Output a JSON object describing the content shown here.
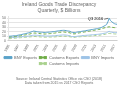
{
  "chart_data": {
    "type": "line",
    "title": "Ireland Goods Trade Discrepancy",
    "subtitle": "Quarterly, $ Billions",
    "annotation": "Q3 2016",
    "source": "Source: Ireland Central Statistics Office via CSO (2018)",
    "note": "Data taken from 2015 vs 2017 CSO Reports",
    "x": [
      1995.0,
      1995.2711,
      1995.5422,
      1995.8133,
      1996.0843,
      1996.3554,
      1996.6265,
      1996.8976,
      1997.1687,
      1997.4398,
      1997.7108,
      1997.9819,
      1998.253,
      1998.5241,
      1998.7952,
      1999.0663,
      1999.3373,
      1999.6084,
      1999.8795,
      2000.1506,
      2000.4217,
      2000.6928,
      2000.9639,
      2001.2349,
      2001.506,
      2001.7771,
      2002.0482,
      2002.3193,
      2002.5904,
      2002.8614,
      2003.1325,
      2003.4036,
      2003.6747,
      2003.9458,
      2004.2169,
      2004.488,
      2004.759,
      2005.0301,
      2005.3012,
      2005.5723,
      2005.8434,
      2006.1145,
      2006.3855,
      2006.6566,
      2006.9277,
      2007.1988,
      2007.4699,
      2007.741,
      2008.012,
      2008.2831,
      2008.5542,
      2008.8253,
      2009.0964,
      2009.3675,
      2009.6386,
      2009.9096,
      2010.1807,
      2010.4518,
      2010.7229,
      2010.994,
      2011.2651,
      2011.5361,
      2011.8072,
      2012.0783,
      2012.3494,
      2012.6205,
      2012.8916,
      2013.1627,
      2013.4337,
      2013.7048,
      2013.9759,
      2014.247,
      2014.5181,
      2014.7892,
      2015.0602,
      2015.3313,
      2015.6024,
      2015.8735,
      2016.1446,
      2016.4157,
      2016.6867,
      2016.9578,
      2017.2289,
      2017.5
    ],
    "series": [
      {
        "name": "BNY Exports",
        "color": "#5ba3c9",
        "line_style": "solid",
        "values": [
          10.0,
          10.2,
          10.5,
          10.8,
          11.0,
          11.3,
          11.8,
          12.2,
          13.0,
          13.5,
          14.0,
          14.8,
          15.5,
          16.0,
          16.8,
          17.5,
          18.5,
          19.5,
          20.5,
          21.5,
          21.0,
          20.5,
          20.0,
          19.5,
          19.2,
          19.0,
          18.8,
          18.5,
          18.5,
          18.8,
          19.0,
          19.2,
          19.5,
          19.8,
          20.2,
          20.5,
          21.0,
          21.5,
          22.0,
          22.3,
          22.8,
          23.0,
          23.2,
          23.0,
          22.5,
          22.0,
          21.5,
          21.0,
          19.0,
          18.5,
          18.0,
          18.0,
          19.0,
          19.5,
          20.0,
          20.5,
          21.0,
          21.5,
          22.0,
          22.5,
          23.0,
          23.5,
          24.0,
          24.5,
          25.0,
          25.5,
          26.0,
          26.5,
          27.0,
          27.8,
          28.5,
          29.5,
          31.0,
          32.5,
          34.0,
          36.0,
          42.0,
          50.0,
          45.0,
          42.0,
          40.0,
          38.0,
          37.0,
          36.5
        ]
      },
      {
        "name": "Customs Exports",
        "color": "#70ad47",
        "line_style": "dashed",
        "values": [
          8.0,
          8.2,
          8.5,
          8.8,
          9.0,
          9.3,
          9.8,
          10.2,
          10.8,
          11.2,
          11.8,
          12.2,
          12.8,
          13.2,
          13.8,
          14.2,
          15.0,
          15.8,
          16.5,
          17.0,
          17.2,
          16.8,
          16.5,
          16.2,
          15.8,
          15.5,
          15.2,
          15.0,
          15.0,
          15.2,
          15.5,
          15.8,
          16.0,
          16.3,
          16.8,
          17.0,
          17.5,
          18.0,
          18.5,
          18.8,
          19.0,
          19.2,
          19.5,
          19.2,
          18.8,
          18.5,
          18.0,
          17.5,
          16.0,
          15.5,
          15.2,
          15.5,
          16.5,
          17.0,
          17.5,
          18.0,
          18.5,
          19.0,
          19.5,
          20.0,
          20.5,
          21.0,
          21.5,
          22.0,
          22.5,
          23.0,
          23.5,
          24.0,
          24.5,
          25.0,
          25.5,
          26.5,
          27.5,
          28.5,
          29.0,
          30.0,
          30.5,
          31.0,
          30.5,
          30.0,
          29.5,
          29.2,
          29.0,
          28.8
        ]
      },
      {
        "name": "BNY Imports",
        "color": "#9dc3e6",
        "line_style": "solid",
        "values": [
          6.5,
          6.7,
          7.0,
          7.2,
          7.5,
          7.8,
          8.0,
          8.3,
          8.5,
          8.8,
          9.0,
          9.2,
          9.5,
          9.8,
          10.0,
          10.3,
          10.8,
          11.2,
          11.8,
          12.2,
          12.5,
          12.2,
          12.0,
          11.8,
          11.5,
          11.2,
          11.0,
          10.8,
          10.5,
          10.5,
          10.5,
          10.5,
          10.8,
          10.8,
          11.0,
          11.2,
          11.5,
          11.8,
          12.0,
          12.3,
          12.5,
          12.8,
          13.0,
          12.8,
          12.5,
          12.2,
          11.5,
          11.0,
          9.5,
          9.2,
          9.0,
          9.2,
          9.8,
          10.2,
          10.5,
          11.0,
          11.2,
          11.5,
          11.8,
          12.0,
          12.2,
          12.5,
          12.8,
          13.0,
          13.2,
          13.5,
          13.8,
          14.0,
          14.2,
          14.5,
          14.8,
          15.5,
          16.0,
          16.5,
          17.0,
          18.0,
          19.5,
          21.0,
          19.5,
          19.0,
          18.5,
          18.2,
          18.0,
          17.8
        ]
      },
      {
        "name": "Customs Imports",
        "color": "#a9d18e",
        "line_style": "dashed",
        "values": [
          4.5,
          4.7,
          5.0,
          5.2,
          5.5,
          5.8,
          6.0,
          6.3,
          6.5,
          6.8,
          7.0,
          7.2,
          7.5,
          7.8,
          8.0,
          8.3,
          8.5,
          8.8,
          9.0,
          9.2,
          9.5,
          9.2,
          9.0,
          8.8,
          8.5,
          8.3,
          8.0,
          8.0,
          7.8,
          7.8,
          8.0,
          8.2,
          8.2,
          8.3,
          8.5,
          8.5,
          8.8,
          9.0,
          9.2,
          9.5,
          9.8,
          10.0,
          10.2,
          10.0,
          9.8,
          9.5,
          9.2,
          8.8,
          8.0,
          7.8,
          7.5,
          7.8,
          8.2,
          8.5,
          8.8,
          9.0,
          9.2,
          9.5,
          9.8,
          10.0,
          10.2,
          10.5,
          10.5,
          10.8,
          11.0,
          11.2,
          11.5,
          11.8,
          12.0,
          12.2,
          12.5,
          13.0,
          13.5,
          14.0,
          14.5,
          15.0,
          15.8,
          16.5,
          16.0,
          15.8,
          15.5,
          15.2,
          15.0,
          14.8
        ]
      }
    ],
    "xlim": [
      1995.0,
      2017.5
    ],
    "ylim": [
      0,
      55
    ],
    "xticks": [
      1995,
      1997,
      1999,
      2001,
      2003,
      2005,
      2007,
      2009,
      2011,
      2013,
      2015,
      2017
    ],
    "yticks": [
      0,
      10,
      20,
      30,
      40,
      50
    ],
    "grid": "y",
    "legend": "bottom"
  }
}
